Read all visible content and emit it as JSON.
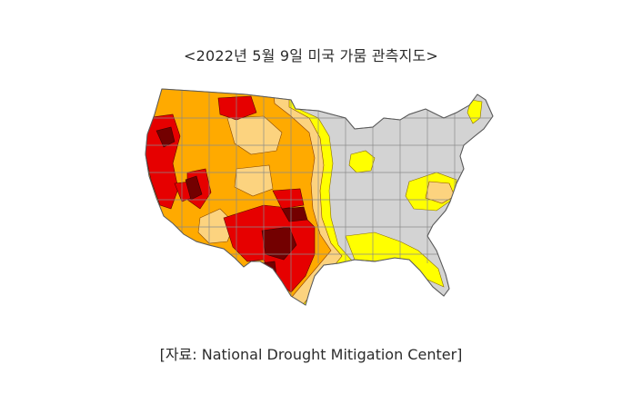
{
  "title": "<2022년 5월 9일 미국 가뭄 관측지도>",
  "caption": "[자료: National Drought Mitigation Center]",
  "legend_colors": {
    "none": "#d3d3d3",
    "d0_abnormally_dry": "#ffff00",
    "d1_moderate": "#fcd37f",
    "d2_severe": "#ffaa00",
    "d3_extreme": "#e60000",
    "d4_exceptional": "#730000",
    "state_border": "#8a8a8a"
  }
}
